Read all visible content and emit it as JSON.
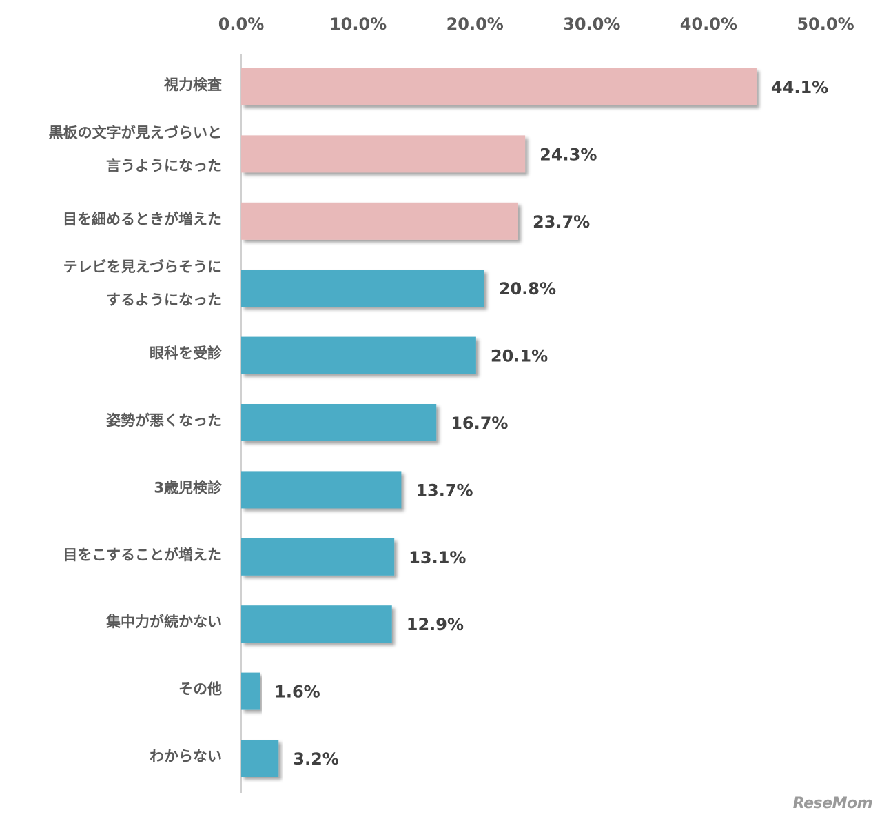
{
  "chart_data": {
    "type": "bar",
    "orientation": "horizontal",
    "title": "",
    "xlabel": "",
    "ylabel": "",
    "xlim": [
      0,
      50
    ],
    "x_ticks": [
      "0.0%",
      "10.0%",
      "20.0%",
      "30.0%",
      "40.0%",
      "50.0%"
    ],
    "x_tick_values": [
      0,
      10,
      20,
      30,
      40,
      50
    ],
    "x_axis_position": "top",
    "grid": false,
    "legend": "none",
    "categories": [
      [
        "視力検査"
      ],
      [
        "黒板の文字が見えづらいと",
        "言うようになった"
      ],
      [
        "目を細めるときが増えた"
      ],
      [
        "テレビを見えづらそうに",
        "するようになった"
      ],
      [
        "眼科を受診"
      ],
      [
        "姿勢が悪くなった"
      ],
      [
        "3歳児検診"
      ],
      [
        "目をこすることが増えた"
      ],
      [
        "集中力が続かない"
      ],
      [
        "その他"
      ],
      [
        "わからない"
      ]
    ],
    "values": [
      44.1,
      24.3,
      23.7,
      20.8,
      20.1,
      16.7,
      13.7,
      13.1,
      12.9,
      1.6,
      3.2
    ],
    "value_labels": [
      "44.1%",
      "24.3%",
      "23.7%",
      "20.8%",
      "20.1%",
      "16.7%",
      "13.7%",
      "13.1%",
      "12.9%",
      "1.6%",
      "3.2%"
    ],
    "colors": [
      "#e8b9b9",
      "#e8b9b9",
      "#e8b9b9",
      "#4bacc6",
      "#4bacc6",
      "#4bacc6",
      "#4bacc6",
      "#4bacc6",
      "#4bacc6",
      "#4bacc6",
      "#4bacc6"
    ],
    "axis_color": "#d0d0d0"
  },
  "watermark": "ReseMom"
}
